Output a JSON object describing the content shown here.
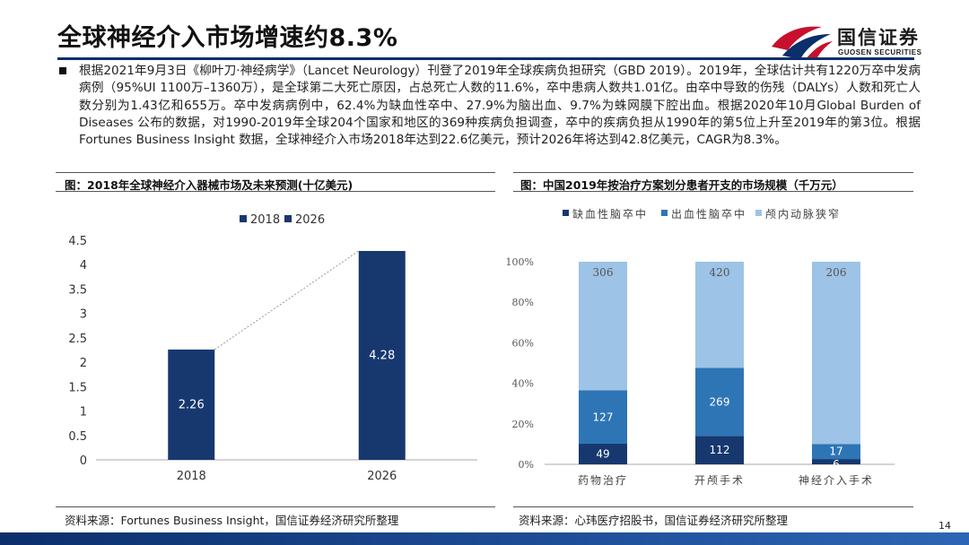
{
  "page": {
    "title": "全球神经介入市场增速约8.3%",
    "paragraph": "根据2021年9月3日《柳叶刀·神经病学》（Lancet Neurology）刊登了2019年全球疾病负担研究（GBD 2019）。2019年，全球估计共有1220万卒中发病病例（95%UI 1100万–1360万），是全球第二大死亡原因，占总死亡人数的11.6%，卒中患病人数共1.01亿。由卒中导致的伤残（DALYs）人数和死亡人数分别为1.43亿和655万。卒中发病病例中，62.4%为缺血性卒中、27.9%为脑出血、9.7%为蛛网膜下腔出血。根据2020年10月Global Burden of Diseases 公布的数据，对1990-2019年全球204个国家和地区的369种疾病负担调查，卒中的疾病负担从1990年的第5位上升至2019年的第3位。根据Fortunes Business Insight 数据，全球神经介入市场2018年达到22.6亿美元，预计2026年将达到42.8亿美元，CAGR为8.3%。",
    "page_number": "14"
  },
  "logo": {
    "name_cn": "国信证券",
    "name_en": "GUOSEN SECURITIES"
  },
  "colors": {
    "navy": "#17386f",
    "mid_blue": "#2e75b6",
    "light_blue": "#9dc3e6",
    "header_line": "#0b2f6b"
  },
  "left_panel": {
    "title": "图：2018年全球神经介入器械市场及未来预测(十亿美元)",
    "source": "资料来源：Fortunes Business Insight，国信证券经济研究所整理"
  },
  "right_panel": {
    "title": "图：中国2019年按治疗方案划分患者开支的市场规模（千万元）",
    "source": "资料来源：心玮医疗招股书，国信证券经济研究所整理"
  },
  "chart_data": [
    {
      "type": "bar",
      "categories": [
        "2018",
        "2026"
      ],
      "legend": [
        "2018",
        "2026"
      ],
      "values": [
        2.26,
        4.28
      ],
      "data_labels": [
        "2.26",
        "4.28"
      ],
      "ylim": [
        0,
        4.5
      ],
      "yticks": [
        "0",
        "0.5",
        "1",
        "1.5",
        "2",
        "2.5",
        "3",
        "3.5",
        "4",
        "4.5"
      ],
      "legend_position": "top-center",
      "grid": false,
      "trend_line": "dotted"
    },
    {
      "type": "bar",
      "stacked": "percent",
      "categories": [
        "药物治疗",
        "开颅手术",
        "神经介入手术"
      ],
      "yticks": [
        "0%",
        "20%",
        "40%",
        "60%",
        "80%",
        "100%"
      ],
      "ylim": [
        0,
        100
      ],
      "legend_position": "top-center",
      "grid": false,
      "series": [
        {
          "name": "缺血性脑卒中",
          "values": [
            49,
            112,
            6
          ]
        },
        {
          "name": "出血性脑卒中",
          "values": [
            127,
            269,
            17
          ]
        },
        {
          "name": "颅内动脉狭窄",
          "values": [
            306,
            420,
            206
          ]
        }
      ]
    }
  ]
}
